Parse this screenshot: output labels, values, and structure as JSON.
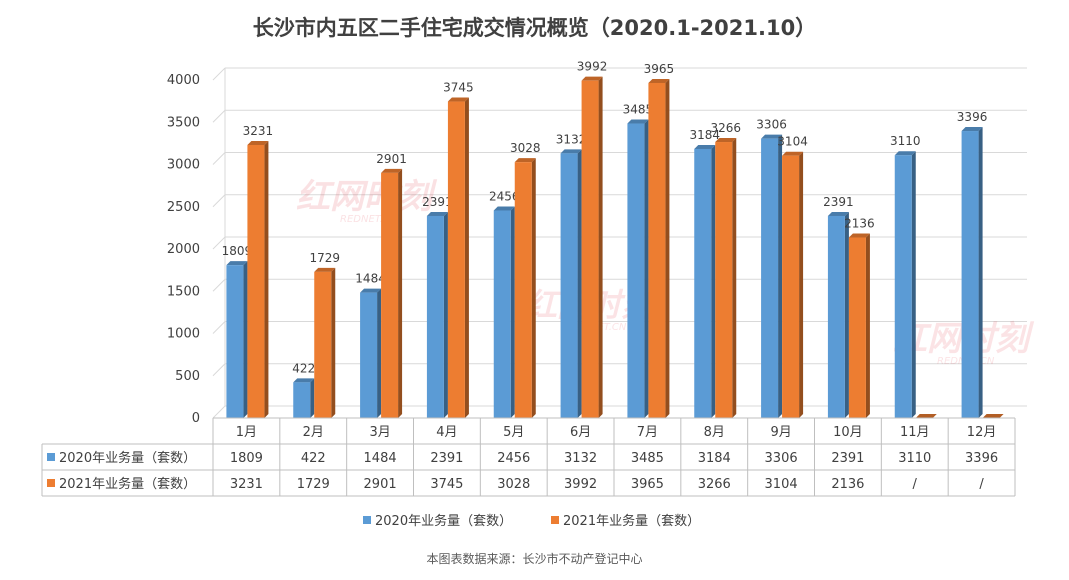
{
  "chart_data": {
    "type": "bar",
    "title": "长沙市内五区二手住宅成交情况概览（2020.1-2021.10）",
    "categories": [
      "1月",
      "2月",
      "3月",
      "4月",
      "5月",
      "6月",
      "7月",
      "8月",
      "9月",
      "10月",
      "11月",
      "12月"
    ],
    "series": [
      {
        "name": "2020年业务量（套数）",
        "color": "#5b9bd5",
        "values": [
          1809,
          422,
          1484,
          2391,
          2456,
          3132,
          3485,
          3184,
          3306,
          2391,
          3110,
          3396
        ],
        "table_values": [
          "1809",
          "422",
          "1484",
          "2391",
          "2456",
          "3132",
          "3485",
          "3184",
          "3306",
          "2391",
          "3110",
          "3396"
        ]
      },
      {
        "name": "2021年业务量（套数）",
        "color": "#ed7d31",
        "values": [
          3231,
          1729,
          2901,
          3745,
          3028,
          3992,
          3965,
          3266,
          3104,
          2136,
          null,
          null
        ],
        "table_values": [
          "3231",
          "1729",
          "2901",
          "3745",
          "3028",
          "3992",
          "3965",
          "3266",
          "3104",
          "2136",
          "/",
          "/"
        ]
      }
    ],
    "ylim": [
      0,
      4000
    ],
    "yticks": [
      0,
      500,
      1000,
      1500,
      2000,
      2500,
      3000,
      3500,
      4000
    ],
    "grid": true,
    "legend": "bottom",
    "data_table": true
  },
  "watermark": {
    "brand": "红网时刻",
    "sub": "REDNET.CN"
  },
  "source": "本图表数据来源：长沙市不动产登记中心"
}
